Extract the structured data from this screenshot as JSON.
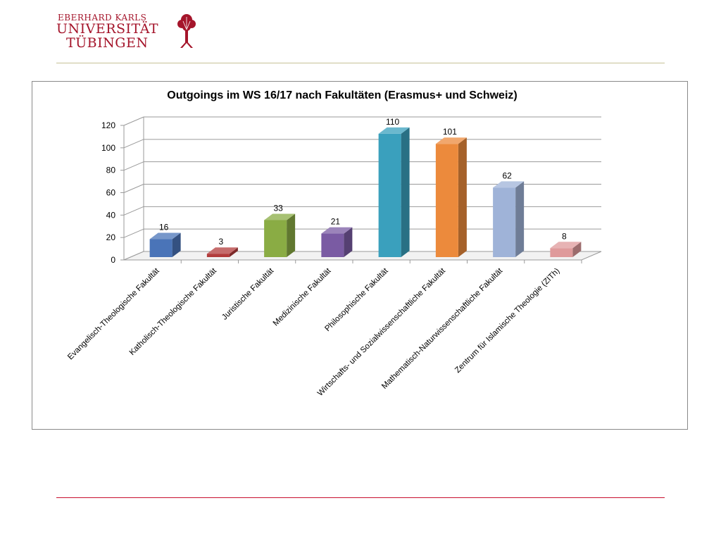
{
  "logo": {
    "line1": "EBERHARD KARLS",
    "line2": "UNIVERSITÄT",
    "line3": "TÜBINGEN",
    "color": "#a5152b"
  },
  "chart_data": {
    "type": "bar",
    "title": "Outgoings im WS 16/17 nach Fakultäten (Erasmus+ und Schweiz)",
    "categories": [
      "Evangelisch-Theologische Fakultät",
      "Katholisch-Theologische Fakultät",
      "Juristische Fakultät",
      "Medizinische Fakultät",
      "Philosophische Fakultät",
      "Wirtschafts- und Sozialwissenschaftliche Fakultät",
      "Mathematisch-Naturwissenschaftliche Fakultät",
      "Zentrum für Islamische Theologie (ZITh)"
    ],
    "values": [
      16,
      3,
      33,
      21,
      110,
      101,
      62,
      8
    ],
    "colors": [
      "#4a74b8",
      "#b23b3b",
      "#8aac44",
      "#7a5ba3",
      "#3aa0bd",
      "#ec8a3c",
      "#9fb3d8",
      "#df9a9b"
    ],
    "ylim": [
      0,
      120
    ],
    "yticks": [
      0,
      20,
      40,
      60,
      80,
      100,
      120
    ],
    "grid": true,
    "legend": "none"
  }
}
